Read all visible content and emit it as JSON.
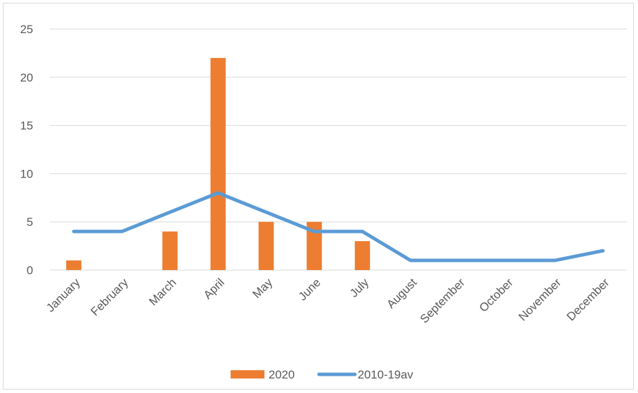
{
  "chart_data": {
    "type": "bar",
    "categories": [
      "January",
      "February",
      "March",
      "April",
      "May",
      "June",
      "July",
      "August",
      "September",
      "October",
      "November",
      "December"
    ],
    "series": [
      {
        "name": "2020",
        "type": "bar",
        "color": "#ed7d31",
        "values": [
          1,
          0,
          4,
          22,
          5,
          5,
          3,
          0,
          0,
          0,
          0,
          0
        ]
      },
      {
        "name": "2010-19av",
        "type": "line",
        "color": "#5b9bd5",
        "values": [
          4,
          4,
          6,
          8,
          6,
          4,
          4,
          1,
          1,
          1,
          1,
          2
        ]
      }
    ],
    "ylim": [
      0,
      25
    ],
    "yticks": [
      "0",
      "5",
      "10",
      "15",
      "20",
      "25"
    ],
    "grid": true,
    "legend": "bottom"
  }
}
